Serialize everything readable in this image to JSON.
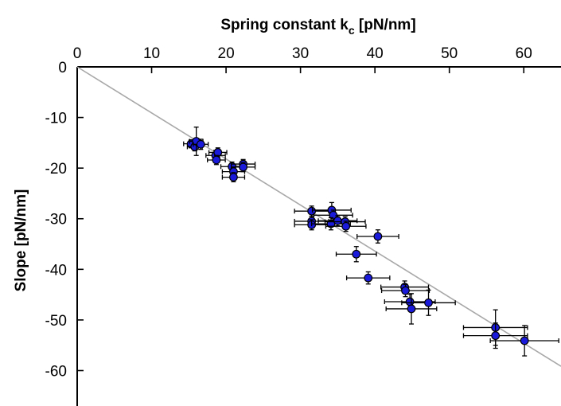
{
  "chart_data": {
    "type": "scatter",
    "title": "",
    "xlabel": "Spring constant k",
    "xlabel_subscript": "c",
    "xlabel_unit": " [pN/nm]",
    "ylabel": "Slope [pN/nm]",
    "xlim": [
      0,
      65
    ],
    "ylim": [
      -67,
      0
    ],
    "x_axis_position": "top",
    "x_ticks": [
      0,
      10,
      20,
      30,
      40,
      50,
      60
    ],
    "x_tick_labels": [
      "0",
      "10",
      "20",
      "30",
      "40",
      "50",
      "60"
    ],
    "y_ticks": [
      0,
      -10,
      -20,
      -30,
      -40,
      -50,
      -60
    ],
    "y_tick_labels": [
      "0",
      "-10",
      "-20",
      "-30",
      "-40",
      "-50",
      "-60"
    ],
    "grid": false,
    "legend": "none",
    "fit_line": {
      "slope": -0.91,
      "intercept": 0,
      "x_range": [
        0,
        65
      ],
      "color": "#a8a8a8"
    },
    "marker_color": "#1a1adb",
    "points": [
      {
        "x": 15.3,
        "y": -15.2,
        "xerr": 1.0,
        "yerr": 0.8
      },
      {
        "x": 15.8,
        "y": -15.8,
        "xerr": 1.0,
        "yerr": 0.8
      },
      {
        "x": 16.0,
        "y": -14.7,
        "xerr": 0.9,
        "yerr": 2.8
      },
      {
        "x": 16.6,
        "y": -15.3,
        "xerr": 1.0,
        "yerr": 1.0
      },
      {
        "x": 18.6,
        "y": -17.5,
        "xerr": 1.3,
        "yerr": 1.0
      },
      {
        "x": 18.9,
        "y": -16.9,
        "xerr": 1.2,
        "yerr": 0.9
      },
      {
        "x": 18.7,
        "y": -18.4,
        "xerr": 1.2,
        "yerr": 0.9
      },
      {
        "x": 20.8,
        "y": -19.7,
        "xerr": 1.5,
        "yerr": 0.9
      },
      {
        "x": 21.0,
        "y": -20.7,
        "xerr": 1.5,
        "yerr": 0.9
      },
      {
        "x": 21.0,
        "y": -21.8,
        "xerr": 1.5,
        "yerr": 0.9
      },
      {
        "x": 22.3,
        "y": -19.2,
        "xerr": 1.6,
        "yerr": 0.9
      },
      {
        "x": 22.3,
        "y": -19.8,
        "xerr": 1.6,
        "yerr": 0.9
      },
      {
        "x": 31.5,
        "y": -28.5,
        "xerr": 2.3,
        "yerr": 1.0
      },
      {
        "x": 31.5,
        "y": -30.5,
        "xerr": 2.3,
        "yerr": 1.0
      },
      {
        "x": 31.5,
        "y": -31.2,
        "xerr": 2.3,
        "yerr": 1.0
      },
      {
        "x": 34.2,
        "y": -28.3,
        "xerr": 2.6,
        "yerr": 1.5
      },
      {
        "x": 34.4,
        "y": -29.3,
        "xerr": 2.6,
        "yerr": 1.0
      },
      {
        "x": 34.1,
        "y": -31.0,
        "xerr": 2.6,
        "yerr": 1.2
      },
      {
        "x": 35.0,
        "y": -30.4,
        "xerr": 2.6,
        "yerr": 1.0
      },
      {
        "x": 36.0,
        "y": -30.6,
        "xerr": 2.7,
        "yerr": 1.0
      },
      {
        "x": 36.1,
        "y": -31.5,
        "xerr": 2.7,
        "yerr": 1.0
      },
      {
        "x": 40.4,
        "y": -33.5,
        "xerr": 2.8,
        "yerr": 1.3
      },
      {
        "x": 37.5,
        "y": -37.0,
        "xerr": 2.7,
        "yerr": 1.5
      },
      {
        "x": 39.1,
        "y": -41.7,
        "xerr": 2.9,
        "yerr": 1.2
      },
      {
        "x": 44.0,
        "y": -43.5,
        "xerr": 3.2,
        "yerr": 1.2
      },
      {
        "x": 44.1,
        "y": -44.2,
        "xerr": 3.2,
        "yerr": 1.2
      },
      {
        "x": 44.7,
        "y": -46.4,
        "xerr": 3.4,
        "yerr": 1.5
      },
      {
        "x": 47.2,
        "y": -46.6,
        "xerr": 3.6,
        "yerr": 2.5
      },
      {
        "x": 44.9,
        "y": -47.8,
        "xerr": 3.4,
        "yerr": 3.0
      },
      {
        "x": 56.2,
        "y": -51.5,
        "xerr": 4.3,
        "yerr": 3.5
      },
      {
        "x": 56.2,
        "y": -53.1,
        "xerr": 4.3,
        "yerr": 2.5
      },
      {
        "x": 60.1,
        "y": -54.1,
        "xerr": 4.6,
        "yerr": 3.0
      }
    ]
  }
}
